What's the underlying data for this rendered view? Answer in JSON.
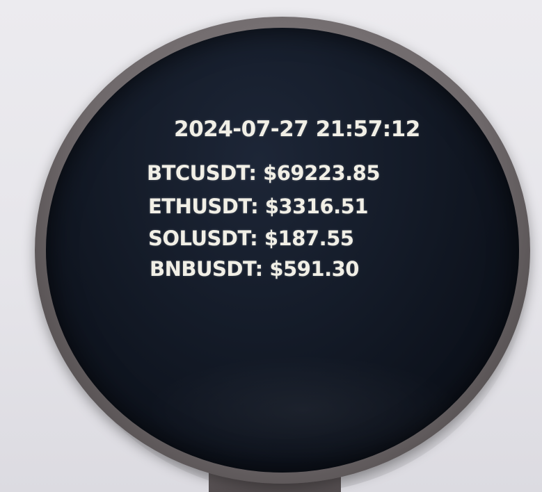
{
  "display": {
    "timestamp": "2024-07-27 21:57:12",
    "tickers": [
      {
        "text": "BTCUSDT: $69223.85"
      },
      {
        "text": "ETHUSDT: $3316.51"
      },
      {
        "text": "SOLUSDT: $187.55"
      },
      {
        "text": "BNBUSDT: $591.30"
      }
    ],
    "text_color": "#f1efe6",
    "screen_color": "#0d121c"
  }
}
